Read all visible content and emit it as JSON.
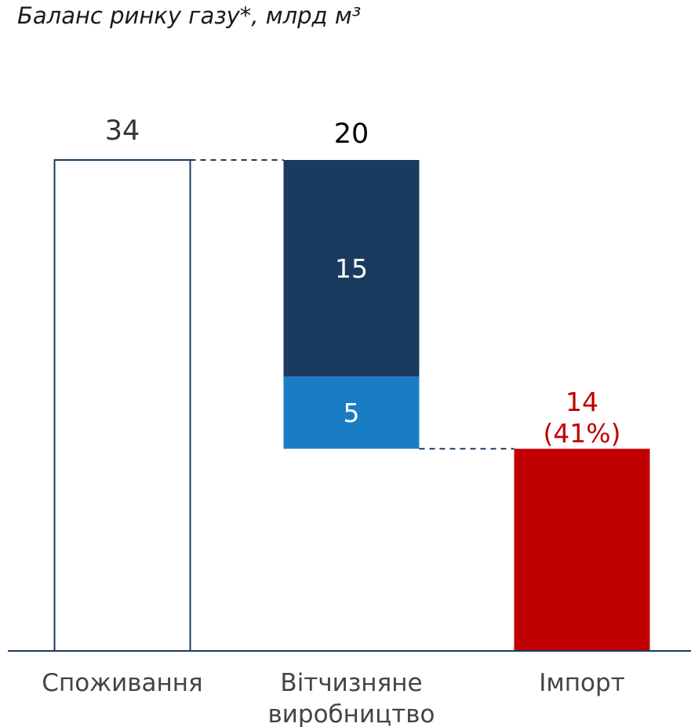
{
  "chart_data": {
    "type": "waterfall",
    "title": "Баланс ринку газу*, млрд м³",
    "categories": [
      "Споживання",
      "Вітчизняне виробництво",
      "Імпорт"
    ],
    "bars": [
      {
        "segments": [
          {
            "value": 34,
            "color": "#ffffff"
          }
        ],
        "label_color": "#333333"
      },
      {
        "total": 20,
        "segments": [
          {
            "value": 5,
            "color": "#1a7dc4"
          },
          {
            "value": 15,
            "color": "#1b3a60"
          }
        ],
        "label_color": "#000000",
        "segment_label_color": "#ffffff"
      },
      {
        "segments": [
          {
            "value": 14,
            "color": "#c00000"
          }
        ],
        "share": 41,
        "share_label": "(41%)",
        "label_color": "#c00000"
      }
    ],
    "outline_color": "#1b3a60"
  }
}
